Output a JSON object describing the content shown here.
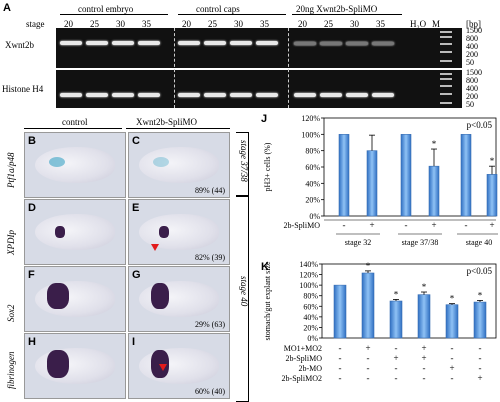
{
  "panelA": {
    "letter": "A",
    "stage_label": "stage",
    "group1": "control embryo",
    "group2": "control caps",
    "group3": "20ng Xwnt2b-SpliMO",
    "stages": [
      "20",
      "25",
      "30",
      "35",
      "20",
      "25",
      "30",
      "35",
      "20",
      "25",
      "30",
      "35"
    ],
    "h2o": "H₂O",
    "marker": "M",
    "bp": "[bp]",
    "gene1": "Xwnt2b",
    "gene2": "Histone H4",
    "ladder1": [
      "1500",
      "800",
      "400",
      "200",
      "50"
    ],
    "ladder2": [
      "1500",
      "800",
      "400",
      "200",
      "50"
    ]
  },
  "insitu": {
    "col_control": "control",
    "col_mo": "Xwnt2b-SpliMO",
    "rows": [
      {
        "gene": "Ptf1a/p48",
        "left_letter": "B",
        "right_letter": "C",
        "percent": "89% (44)"
      },
      {
        "gene": "XPDIp",
        "left_letter": "D",
        "right_letter": "E",
        "percent": "82% (39)"
      },
      {
        "gene": "Sox2",
        "left_letter": "F",
        "right_letter": "G",
        "percent": "29% (63)"
      },
      {
        "gene": "fibrinogen",
        "left_letter": "H",
        "right_letter": "I",
        "percent": "60% (40)"
      }
    ],
    "stage1": "stage 37/38",
    "stage2": "stage 40"
  },
  "chart_data": [
    {
      "type": "bar",
      "letter": "J",
      "ylabel": "pH3+ cells (%)",
      "ylim": [
        0,
        120
      ],
      "yticks": [
        "0%",
        "20%",
        "40%",
        "60%",
        "80%",
        "100%",
        "120%"
      ],
      "annotation": "p<0.05",
      "row_label": "2b-SpliMO",
      "signs": [
        "-",
        "+",
        "-",
        "+",
        "-",
        "+"
      ],
      "groups": [
        "stage 32",
        "stage 37/38",
        "stage 40"
      ],
      "values": [
        100,
        80,
        100,
        61,
        100,
        51
      ],
      "errors": [
        0,
        19,
        0,
        21,
        0,
        10
      ],
      "stars": [
        false,
        false,
        false,
        true,
        false,
        true
      ]
    },
    {
      "type": "bar",
      "letter": "K",
      "ylabel": "stomach/gut explant size",
      "ylim": [
        0,
        140
      ],
      "yticks": [
        "0%",
        "20%",
        "40%",
        "60%",
        "80%",
        "100%",
        "120%",
        "140%"
      ],
      "annotation": "p<0.05",
      "row_labels": [
        "MO1+MO2",
        "2b-SpliMO",
        "2b-MO",
        "2b-SpliMO2"
      ],
      "sign_rows": [
        [
          "-",
          "+",
          "-",
          "+",
          "-",
          "-"
        ],
        [
          "-",
          "-",
          "+",
          "+",
          "-",
          "-"
        ],
        [
          "-",
          "-",
          "-",
          "-",
          "+",
          "-"
        ],
        [
          "-",
          "-",
          "-",
          "-",
          "-",
          "+"
        ]
      ],
      "values": [
        100,
        123,
        70,
        82,
        63,
        68
      ],
      "errors": [
        0,
        4,
        3,
        5,
        2,
        3
      ],
      "stars": [
        false,
        true,
        true,
        true,
        true,
        true
      ]
    }
  ]
}
